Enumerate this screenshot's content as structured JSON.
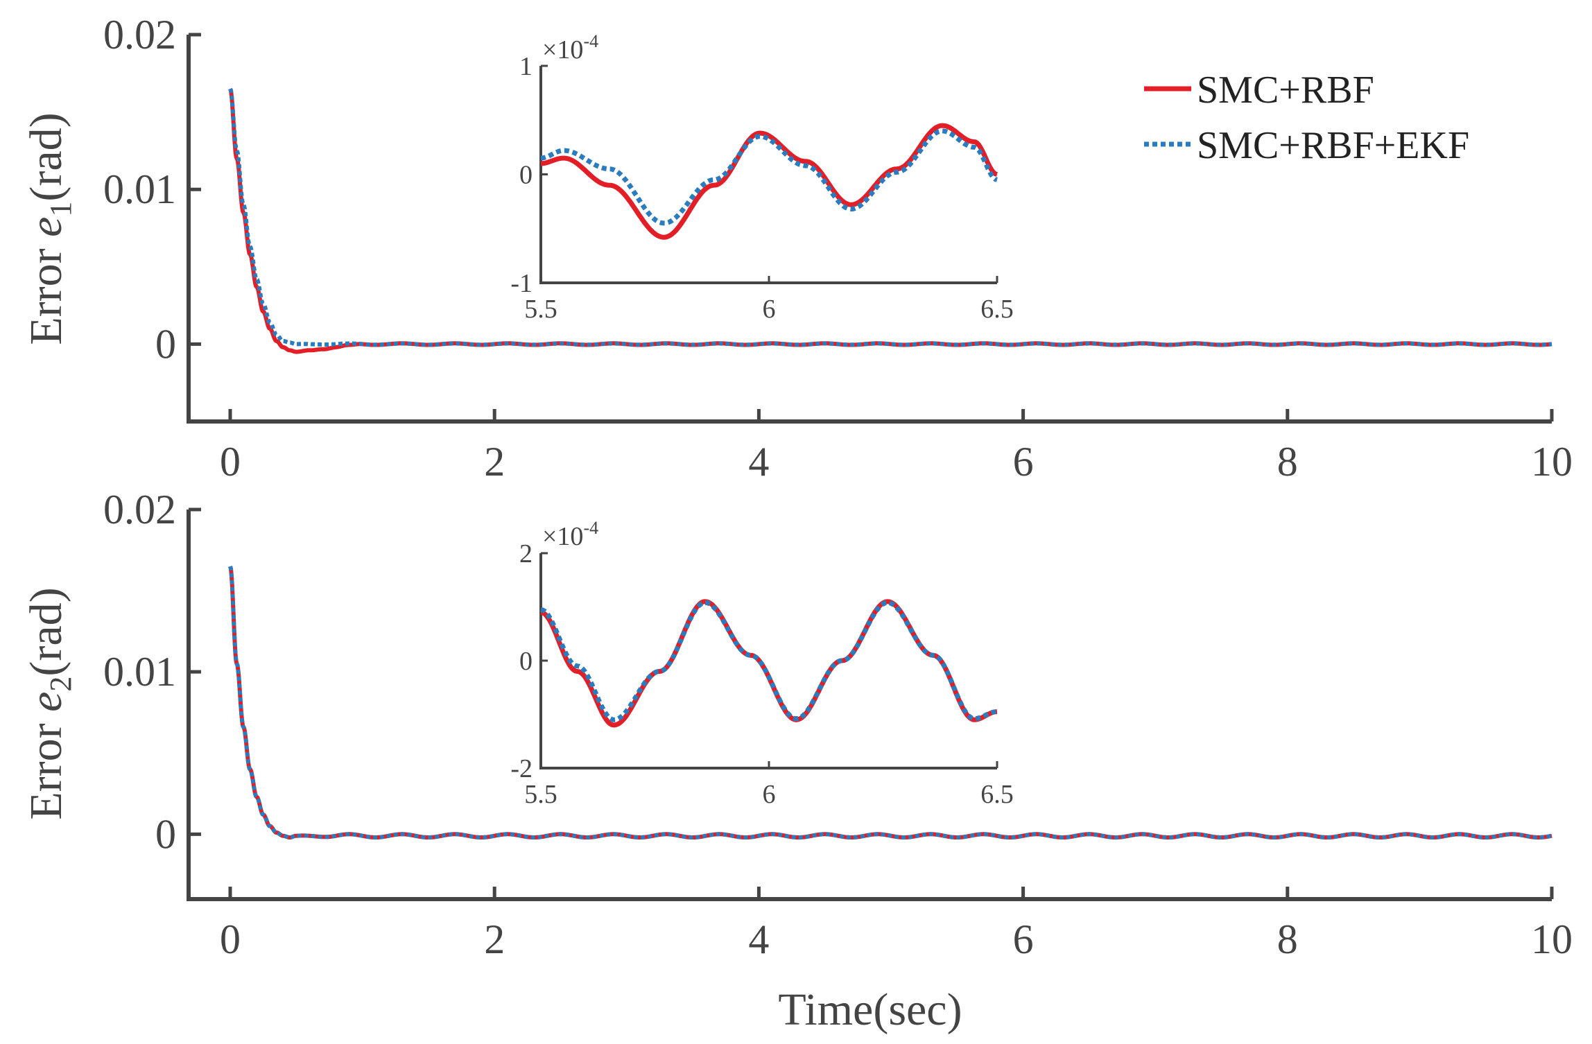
{
  "colors": {
    "series1": "#e21f26",
    "series2": "#2b7bbf",
    "axis": "#444444"
  },
  "legend": {
    "location": "top-right",
    "entries": [
      "SMC+RBF",
      "SMC+RBF+EKF"
    ]
  },
  "xlabel": "Time(sec)",
  "chart_data": [
    {
      "type": "line",
      "name": "top",
      "ylabel_prefix": "Error ",
      "ylabel_var": "e",
      "ylabel_sub": "1",
      "ylabel_suffix": "(rad)",
      "xlim": [
        0,
        10
      ],
      "ylim": [
        -0.005,
        0.02
      ],
      "xticks": [
        0,
        2,
        4,
        6,
        8,
        10
      ],
      "xtick_labels": [
        "0",
        "2",
        "4",
        "6",
        "8",
        "10"
      ],
      "yticks": [
        0,
        0.01,
        0.02
      ],
      "ytick_labels": [
        "0",
        "0.01",
        "0.02"
      ],
      "series": [
        {
          "name": "SMC+RBF",
          "style": "solid",
          "x": [
            0,
            0.05,
            0.1,
            0.15,
            0.2,
            0.25,
            0.3,
            0.35,
            0.4,
            0.45,
            0.5,
            0.6,
            0.7,
            0.8,
            0.9,
            1.0,
            1.2
          ],
          "y": [
            0.0165,
            0.012,
            0.0085,
            0.0058,
            0.0037,
            0.0021,
            0.001,
            0.0002,
            -0.0002,
            -0.0004,
            -0.0005,
            -0.0004,
            -0.0003,
            -0.0002,
            -0.0001,
            0,
            0
          ],
          "osc_amp": 5e-05,
          "osc_freq": 2.5
        },
        {
          "name": "SMC+RBF+EKF",
          "style": "dotted",
          "x": [
            0,
            0.05,
            0.1,
            0.15,
            0.2,
            0.25,
            0.3,
            0.35,
            0.4,
            0.45,
            0.5,
            0.6,
            0.7,
            0.8,
            0.9,
            1.0,
            1.2
          ],
          "y": [
            0.0165,
            0.0125,
            0.009,
            0.0063,
            0.0042,
            0.0026,
            0.0014,
            0.0006,
            0.0002,
            0.0001,
            0,
            0,
            0,
            0,
            0,
            0,
            0
          ],
          "osc_amp": 4e-05,
          "osc_freq": 2.5
        }
      ],
      "inset": {
        "xlim": [
          5.5,
          6.5
        ],
        "ylim": [
          -1,
          1
        ],
        "xticks": [
          5.5,
          6,
          6.5
        ],
        "xtick_labels": [
          "5.5",
          "6",
          "6.5"
        ],
        "yticks": [
          -1,
          0,
          1
        ],
        "ytick_labels": [
          "-1",
          "0",
          "1"
        ],
        "exponent": "×10",
        "exponent_power": "-4",
        "series": [
          {
            "name": "SMC+RBF",
            "x": [
              5.5,
              5.55,
              5.65,
              5.77,
              5.88,
              5.98,
              6.08,
              6.18,
              6.28,
              6.38,
              6.45,
              6.5
            ],
            "y": [
              0.1,
              0.15,
              -0.1,
              -0.58,
              -0.1,
              0.38,
              0.12,
              -0.28,
              0.05,
              0.45,
              0.3,
              0
            ]
          },
          {
            "name": "SMC+RBF+EKF",
            "x": [
              5.5,
              5.55,
              5.65,
              5.77,
              5.88,
              5.98,
              6.08,
              6.18,
              6.28,
              6.38,
              6.45,
              6.5
            ],
            "y": [
              0.15,
              0.22,
              0.05,
              -0.45,
              -0.05,
              0.35,
              0.08,
              -0.32,
              0.02,
              0.4,
              0.25,
              -0.05
            ]
          }
        ]
      }
    },
    {
      "type": "line",
      "name": "bottom",
      "ylabel_prefix": "Error ",
      "ylabel_var": "e",
      "ylabel_sub": "2",
      "ylabel_suffix": "(rad)",
      "xlim": [
        0,
        10
      ],
      "ylim": [
        -0.004,
        0.02
      ],
      "xticks": [
        0,
        2,
        4,
        6,
        8,
        10
      ],
      "xtick_labels": [
        "0",
        "2",
        "4",
        "6",
        "8",
        "10"
      ],
      "yticks": [
        0,
        0.01,
        0.02
      ],
      "ytick_labels": [
        "0",
        "0.01",
        "0.02"
      ],
      "series": [
        {
          "name": "SMC+RBF",
          "style": "solid",
          "x": [
            0,
            0.05,
            0.1,
            0.15,
            0.2,
            0.25,
            0.3,
            0.35,
            0.4,
            0.45,
            0.5
          ],
          "y": [
            0.0165,
            0.0105,
            0.0066,
            0.004,
            0.0023,
            0.0012,
            0.0005,
            0.0001,
            -0.0001,
            -0.0002,
            -0.0001
          ],
          "osc_amp": 0.0001,
          "osc_freq": 2.5
        },
        {
          "name": "SMC+RBF+EKF",
          "style": "dotted",
          "x": [
            0,
            0.05,
            0.1,
            0.15,
            0.2,
            0.25,
            0.3,
            0.35,
            0.4,
            0.45,
            0.5
          ],
          "y": [
            0.0165,
            0.0105,
            0.0066,
            0.004,
            0.0023,
            0.0012,
            0.0005,
            0.0001,
            -0.0001,
            -0.0002,
            -0.0001
          ],
          "osc_amp": 0.0001,
          "osc_freq": 2.5
        }
      ],
      "inset": {
        "xlim": [
          5.5,
          6.5
        ],
        "ylim": [
          -2,
          2
        ],
        "xticks": [
          5.5,
          6,
          6.5
        ],
        "xtick_labels": [
          "5.5",
          "6",
          "6.5"
        ],
        "yticks": [
          -2,
          0,
          2
        ],
        "ytick_labels": [
          "-2",
          "0",
          "2"
        ],
        "exponent": "×10",
        "exponent_power": "-4",
        "series": [
          {
            "name": "SMC+RBF",
            "x": [
              5.5,
              5.58,
              5.66,
              5.76,
              5.86,
              5.96,
              6.06,
              6.16,
              6.26,
              6.36,
              6.45,
              6.5
            ],
            "y": [
              0.9,
              -0.2,
              -1.2,
              -0.2,
              1.1,
              0.1,
              -1.1,
              0.0,
              1.1,
              0.1,
              -1.1,
              -0.95
            ]
          },
          {
            "name": "SMC+RBF+EKF",
            "x": [
              5.5,
              5.58,
              5.66,
              5.76,
              5.86,
              5.96,
              6.06,
              6.16,
              6.26,
              6.36,
              6.45,
              6.5
            ],
            "y": [
              0.95,
              -0.1,
              -1.1,
              -0.2,
              1.08,
              0.1,
              -1.08,
              0.0,
              1.08,
              0.1,
              -1.08,
              -0.95
            ]
          }
        ]
      }
    }
  ]
}
